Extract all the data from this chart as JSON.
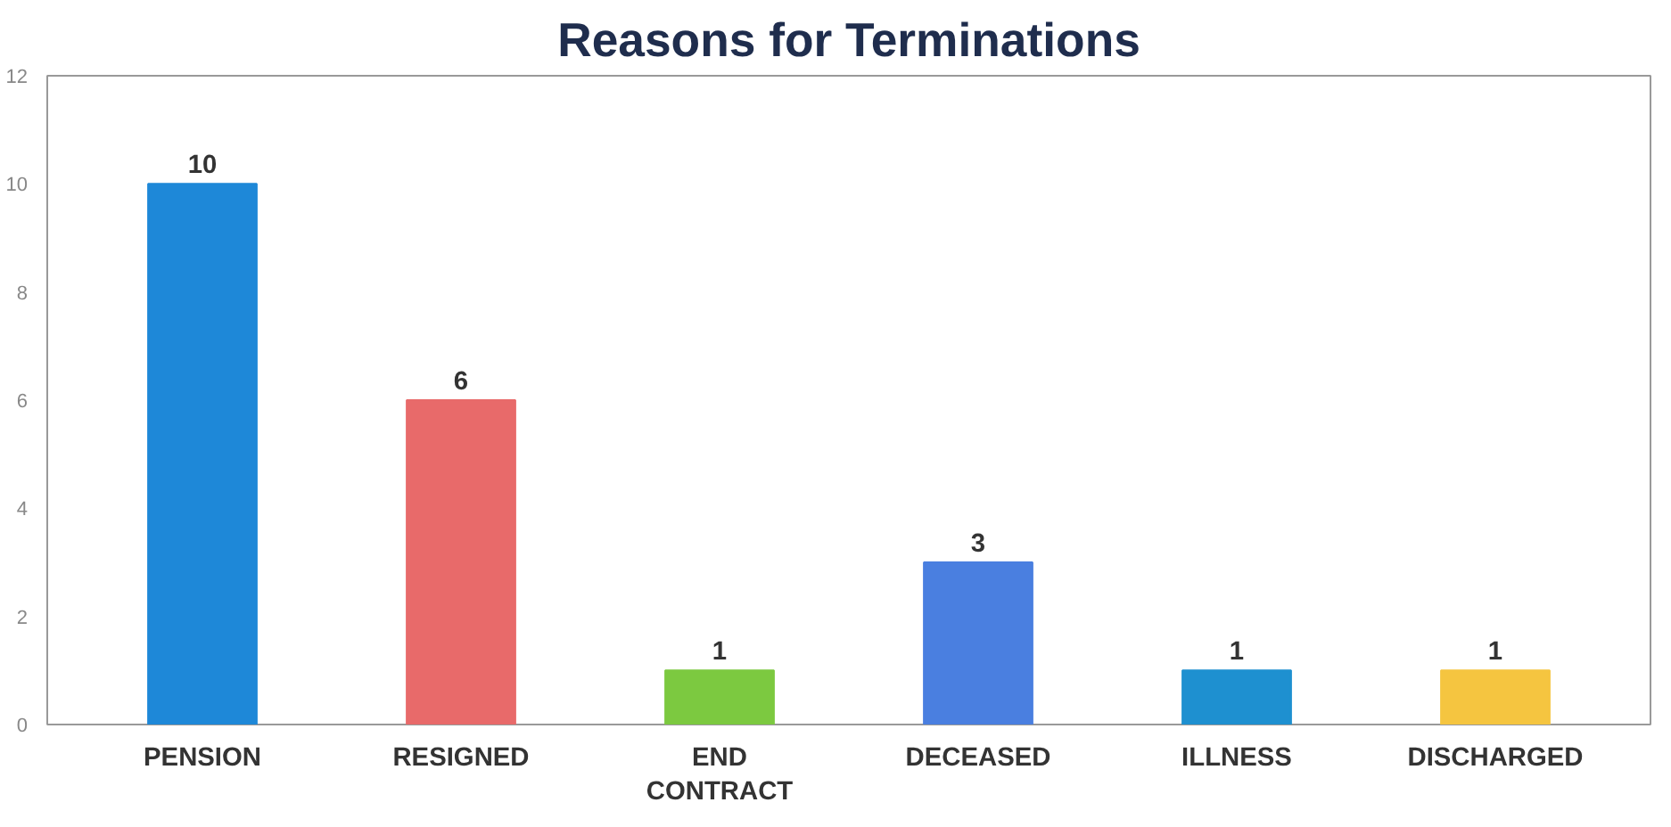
{
  "chart_data": {
    "type": "bar",
    "title": "Reasons for Terminations",
    "categories": [
      "PENSION",
      "RESIGNED",
      "END CONTRACT",
      "DECEASED",
      "ILLNESS",
      "DISCHARGED"
    ],
    "values": [
      10,
      6,
      1,
      3,
      1,
      1
    ],
    "colors": [
      "#1e88d8",
      "#e86a6a",
      "#7cc940",
      "#4a7fe0",
      "#1e90d0",
      "#f5c540"
    ],
    "ylim": [
      0,
      12
    ],
    "yticks": [
      0,
      2,
      4,
      6,
      8,
      10,
      12
    ],
    "data_labels": true,
    "grid": false
  }
}
